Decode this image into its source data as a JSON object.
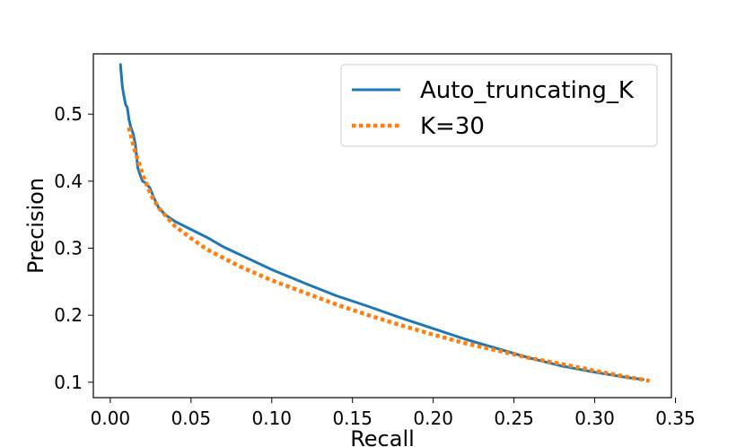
{
  "chart_data": {
    "type": "line",
    "title": "",
    "xlabel": "Recall",
    "ylabel": "Precision",
    "xlim": [
      -0.0105,
      0.3475
    ],
    "ylim": [
      0.077,
      0.59
    ],
    "xticks": [
      0.0,
      0.05,
      0.1,
      0.15,
      0.2,
      0.25,
      0.3,
      0.35
    ],
    "xtick_labels": [
      "0.00",
      "0.05",
      "0.10",
      "0.15",
      "0.20",
      "0.25",
      "0.30",
      "0.35"
    ],
    "yticks": [
      0.1,
      0.2,
      0.3,
      0.4,
      0.5
    ],
    "ytick_labels": [
      "0.1",
      "0.2",
      "0.3",
      "0.4",
      "0.5"
    ],
    "grid": false,
    "legend_position": "top-right",
    "series": [
      {
        "name": "Auto_truncating_K",
        "color": "#1f77b4",
        "style": "solid",
        "x": [
          0.0063,
          0.0068,
          0.0075,
          0.0085,
          0.0095,
          0.0105,
          0.0115,
          0.0125,
          0.014,
          0.0155,
          0.017,
          0.0185,
          0.02,
          0.022,
          0.0245,
          0.027,
          0.03,
          0.034,
          0.04,
          0.05,
          0.06,
          0.07,
          0.085,
          0.1,
          0.12,
          0.14,
          0.16,
          0.18,
          0.2,
          0.22,
          0.24,
          0.26,
          0.28,
          0.3,
          0.32,
          0.33
        ],
        "y": [
          0.574,
          0.56,
          0.54,
          0.526,
          0.514,
          0.51,
          0.493,
          0.482,
          0.472,
          0.455,
          0.42,
          0.409,
          0.4,
          0.397,
          0.39,
          0.375,
          0.36,
          0.35,
          0.34,
          0.328,
          0.316,
          0.302,
          0.285,
          0.268,
          0.248,
          0.229,
          0.213,
          0.196,
          0.18,
          0.164,
          0.15,
          0.136,
          0.124,
          0.115,
          0.107,
          0.104
        ]
      },
      {
        "name": "K=30",
        "color": "#ff7f0e",
        "style": "dotted",
        "x": [
          0.0115,
          0.015,
          0.02,
          0.025,
          0.03,
          0.04,
          0.05,
          0.06,
          0.08,
          0.1,
          0.12,
          0.14,
          0.16,
          0.18,
          0.2,
          0.22,
          0.24,
          0.26,
          0.28,
          0.3,
          0.32,
          0.334
        ],
        "y": [
          0.48,
          0.447,
          0.41,
          0.38,
          0.36,
          0.333,
          0.315,
          0.298,
          0.273,
          0.252,
          0.234,
          0.216,
          0.2,
          0.185,
          0.171,
          0.158,
          0.147,
          0.136,
          0.127,
          0.117,
          0.108,
          0.102
        ]
      }
    ]
  }
}
